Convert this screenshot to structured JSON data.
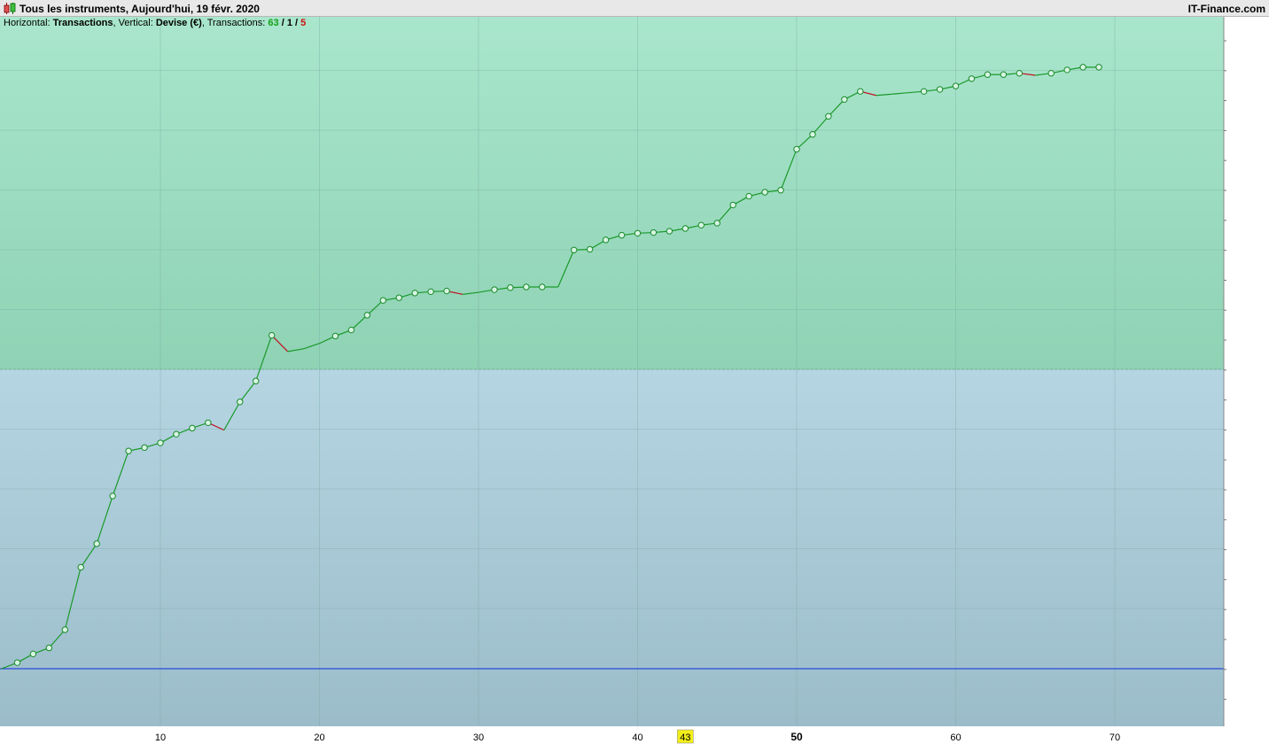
{
  "window": {
    "title": "Tous les instruments, Aujourd'hui, 19 févr. 2020",
    "brand": "IT-Finance.com"
  },
  "info": {
    "horizontal_label": "Horizontal:",
    "horizontal_value": "Transactions",
    "vertical_label": "Vertical:",
    "vertical_value": "Devise (€)",
    "transactions_label": "Transactions:",
    "winners": "63",
    "neutral": "1",
    "losers": "5",
    "sep": "/"
  },
  "colors": {
    "profit_zone": "#a8e6cc",
    "loss_zone": "#b4d4e2",
    "line_up": "#1a9a2a",
    "line_down": "#c01020",
    "zero_line": "#1030e0",
    "highlight": "#f2ee1a"
  },
  "chart_data": {
    "type": "line",
    "title": "",
    "xlabel": "",
    "ylabel": "",
    "xlim": [
      0,
      77
    ],
    "x_ticks": [
      "10",
      "20",
      "30",
      "40",
      "50",
      "60",
      "70"
    ],
    "highlighted_tick": "43",
    "emphasized_tick": "50",
    "grid": true,
    "note": "equity curve; y-axis values are not printed, values below are relative positions",
    "series": [
      {
        "x": [
          0,
          1,
          2,
          3,
          4,
          5,
          6,
          7,
          8,
          9,
          10,
          11,
          12,
          13,
          14,
          15,
          16,
          17,
          18,
          19,
          20,
          21,
          22,
          23,
          24,
          25,
          26,
          27,
          28,
          29,
          30,
          31,
          32,
          33,
          34,
          35,
          36,
          37,
          38,
          39,
          40,
          41,
          42,
          43,
          44,
          45,
          46,
          47,
          48,
          49,
          50,
          51,
          52,
          53,
          54,
          55,
          56,
          57,
          58,
          59,
          60,
          61,
          62,
          63,
          64,
          65,
          66,
          67,
          68,
          69
        ],
        "y": [
          0,
          9,
          22,
          31,
          58,
          151,
          186,
          257,
          324,
          329,
          336,
          349,
          358,
          366,
          355,
          397,
          428,
          496,
          472,
          476,
          484,
          495,
          504,
          526,
          548,
          552,
          559,
          561,
          562,
          557,
          560,
          564,
          567,
          568,
          568,
          568,
          623,
          624,
          638,
          645,
          648,
          649,
          651,
          655,
          660,
          663,
          690,
          703,
          709,
          712,
          773,
          795,
          822,
          847,
          859,
          853,
          855,
          857,
          859,
          862,
          867,
          878,
          884,
          884,
          886,
          883,
          886,
          891,
          895,
          895
        ],
        "marked": [
          false,
          true,
          true,
          true,
          true,
          true,
          true,
          true,
          true,
          true,
          true,
          true,
          true,
          true,
          false,
          true,
          true,
          true,
          false,
          false,
          false,
          true,
          true,
          true,
          true,
          true,
          true,
          true,
          true,
          false,
          false,
          true,
          true,
          true,
          true,
          false,
          true,
          true,
          true,
          true,
          true,
          true,
          true,
          true,
          true,
          true,
          true,
          true,
          true,
          true,
          true,
          true,
          true,
          true,
          true,
          false,
          false,
          false,
          true,
          true,
          true,
          true,
          true,
          true,
          true,
          false,
          true,
          true,
          true,
          true
        ]
      }
    ]
  }
}
